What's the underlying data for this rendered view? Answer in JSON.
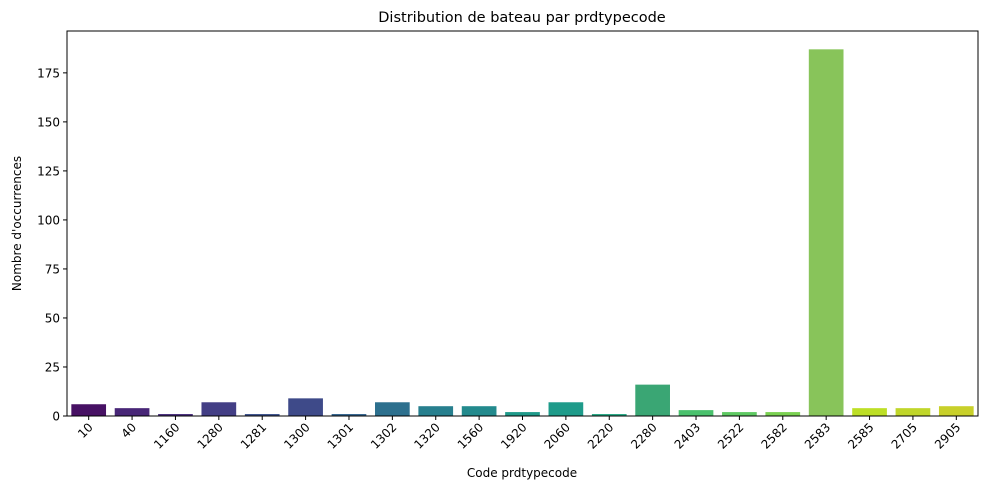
{
  "chart_data": {
    "type": "bar",
    "title": "Distribution de bateau par prdtypecode",
    "xlabel": "Code prdtypecode",
    "ylabel": "Nombre d'occurrences",
    "categories": [
      "10",
      "40",
      "1160",
      "1280",
      "1281",
      "1300",
      "1301",
      "1302",
      "1320",
      "1560",
      "1920",
      "2060",
      "2220",
      "2280",
      "2403",
      "2522",
      "2582",
      "2583",
      "2585",
      "2705",
      "2905"
    ],
    "values": [
      6,
      4,
      1,
      7,
      1,
      9,
      1,
      7,
      5,
      5,
      2,
      7,
      1,
      16,
      3,
      2,
      2,
      187,
      4,
      4,
      5
    ],
    "colors": [
      "#471164",
      "#482677",
      "#472d7b",
      "#433e85",
      "#3b518b",
      "#3e4a89",
      "#33638d",
      "#2d708e",
      "#277f8e",
      "#238a8d",
      "#1f9a8a",
      "#1e9b8a",
      "#26a784",
      "#3aa674",
      "#4ac16d",
      "#5ec962",
      "#7ad151",
      "#88c45a",
      "#bddf26",
      "#c0d62a",
      "#c8d02a"
    ],
    "yticks": [
      0,
      25,
      50,
      75,
      100,
      125,
      150,
      175
    ],
    "ylim": [
      0,
      196.35
    ],
    "tick_rotation": -45,
    "grid": false
  }
}
